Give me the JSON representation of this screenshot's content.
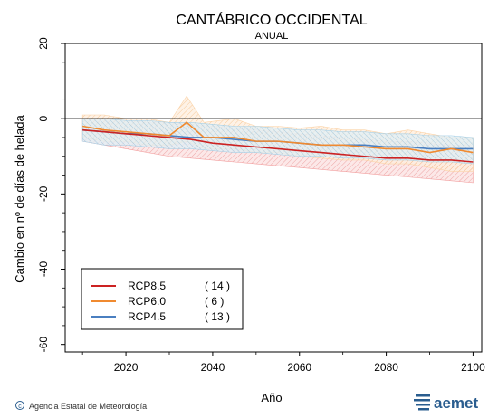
{
  "chart_data": {
    "type": "line",
    "title": "CANTÁBRICO OCCIDENTAL",
    "subtitle": "ANUAL",
    "xlabel": "Año",
    "ylabel": "Cambio en nº de días de helada",
    "xlim": [
      2006,
      2102
    ],
    "ylim": [
      -62,
      20
    ],
    "xticks": [
      2020,
      2040,
      2060,
      2080,
      2100
    ],
    "yticks": [
      20,
      0,
      -20,
      -40,
      -60
    ],
    "zero_line": true,
    "legend_position": "bottom-left",
    "series": [
      {
        "name": "RCP8.5",
        "count": "( 14 )",
        "color": "#cc2222",
        "band_color": "#f2a0a0",
        "x": [
          2010,
          2015,
          2020,
          2025,
          2030,
          2035,
          2040,
          2045,
          2050,
          2055,
          2060,
          2065,
          2070,
          2075,
          2080,
          2085,
          2090,
          2095,
          2100
        ],
        "y": [
          -3,
          -3.5,
          -4,
          -4.5,
          -5,
          -5.5,
          -6.5,
          -7,
          -7.5,
          -8,
          -8.5,
          -9,
          -9.5,
          -10,
          -10.5,
          -10.5,
          -11,
          -11,
          -11.5
        ],
        "low": [
          -6,
          -7,
          -8,
          -9,
          -10,
          -10.5,
          -11,
          -11.5,
          -12,
          -12.5,
          -13,
          -13.5,
          -14,
          -14.5,
          -15,
          -15.5,
          -16,
          -16.5,
          -17
        ],
        "high": [
          0,
          0,
          -0.5,
          -1,
          -1,
          -1.5,
          -2,
          -2.5,
          -3,
          -3.5,
          -4,
          -4.5,
          -5,
          -5.5,
          -6,
          -6,
          -6.5,
          -7,
          -7
        ]
      },
      {
        "name": "RCP6.0",
        "count": "(   6 )",
        "color": "#f08a30",
        "band_color": "#fbd3a8",
        "x": [
          2010,
          2015,
          2020,
          2025,
          2030,
          2034,
          2038,
          2045,
          2050,
          2055,
          2060,
          2065,
          2070,
          2075,
          2080,
          2085,
          2090,
          2095,
          2100
        ],
        "y": [
          -2,
          -3,
          -3.5,
          -4,
          -4.5,
          -1,
          -5,
          -5,
          -6,
          -6,
          -6.5,
          -7,
          -7,
          -7.5,
          -8,
          -8,
          -9,
          -8,
          -9
        ],
        "low": [
          -5,
          -6,
          -6,
          -7,
          -7,
          -6,
          -8,
          -8,
          -9,
          -9,
          -10,
          -10.5,
          -11,
          -11,
          -12,
          -12,
          -13,
          -14,
          -14
        ],
        "high": [
          1,
          1,
          0,
          0,
          -1,
          6,
          -1,
          0,
          -2,
          -2,
          -2.5,
          -2,
          -3,
          -3,
          -4,
          -3,
          -4,
          -5,
          -5
        ]
      },
      {
        "name": "RCP4.5",
        "count": "( 13 )",
        "color": "#4a7fc0",
        "band_color": "#a8d0e6",
        "x": [
          2010,
          2015,
          2020,
          2025,
          2030,
          2035,
          2040,
          2045,
          2050,
          2055,
          2060,
          2065,
          2070,
          2075,
          2080,
          2085,
          2090,
          2095,
          2100
        ],
        "y": [
          -3,
          -3.5,
          -4,
          -4,
          -4.5,
          -5,
          -5,
          -5.5,
          -6,
          -6,
          -6.5,
          -7,
          -7,
          -7,
          -7.5,
          -7.5,
          -8,
          -8,
          -8
        ],
        "low": [
          -6,
          -7,
          -7,
          -7.5,
          -8,
          -8,
          -8.5,
          -9,
          -9,
          -9.5,
          -10,
          -10,
          -10.5,
          -10.5,
          -11,
          -11,
          -11.5,
          -11.5,
          -12
        ],
        "high": [
          0,
          0,
          -0.5,
          -0.5,
          -1,
          -1,
          -1.5,
          -2,
          -2,
          -2.5,
          -3,
          -3,
          -3.5,
          -3.5,
          -4,
          -4,
          -4.5,
          -4.5,
          -5
        ]
      }
    ]
  },
  "footer": {
    "credit": "Agencia Estatal de Meteorología",
    "brand": "aemet"
  }
}
